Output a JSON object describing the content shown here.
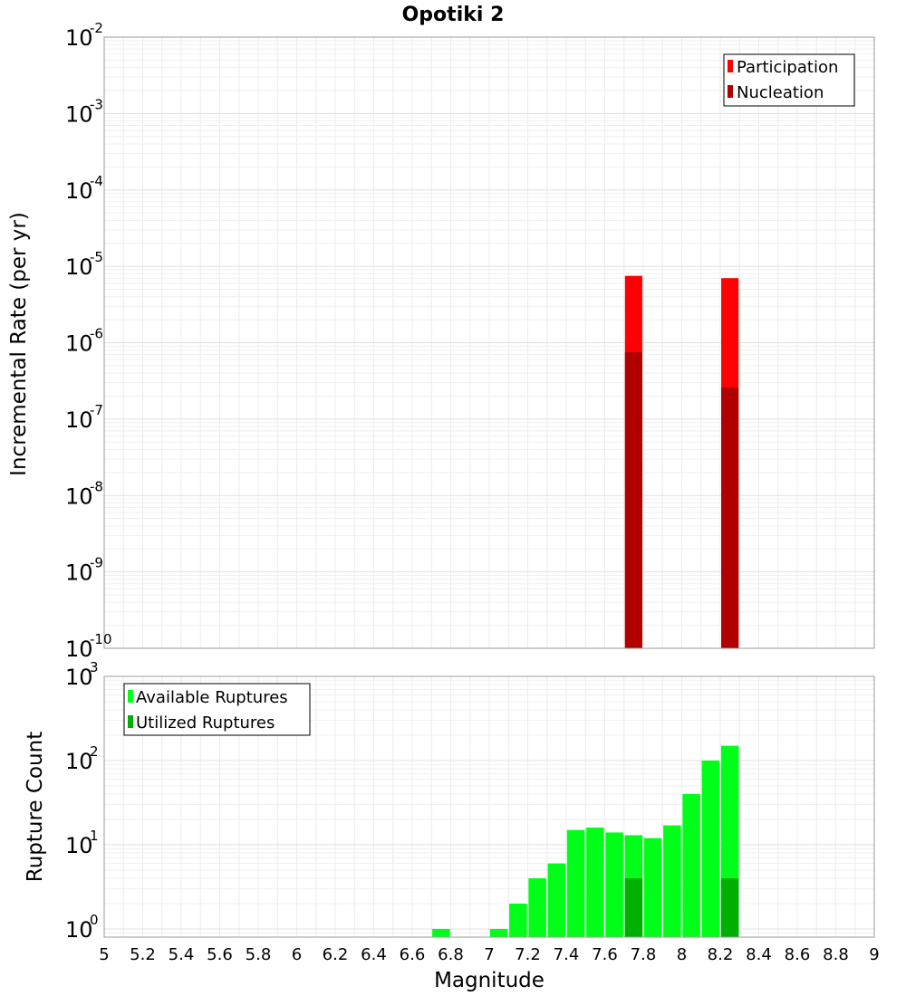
{
  "title": "Opotiki 2",
  "colors": {
    "participation": "#ff0000",
    "nucleation": "#b00000",
    "available": "#00ff18",
    "utilized": "#00b000"
  },
  "chart_data": [
    {
      "type": "bar",
      "title": "Opotiki 2",
      "xlabel": "Magnitude",
      "ylabel": "Incremental Rate (per yr)",
      "yscale": "log",
      "ylim": [
        1e-10,
        0.01
      ],
      "xlim": [
        5,
        9
      ],
      "grid": true,
      "legend_position": "top-right",
      "y_tick_labels": [
        {
          "base": "10",
          "exp": "-10"
        },
        {
          "base": "10",
          "exp": "-9"
        },
        {
          "base": "10",
          "exp": "-8"
        },
        {
          "base": "10",
          "exp": "-7"
        },
        {
          "base": "10",
          "exp": "-6"
        },
        {
          "base": "10",
          "exp": "-5"
        },
        {
          "base": "10",
          "exp": "-4"
        },
        {
          "base": "10",
          "exp": "-3"
        },
        {
          "base": "10",
          "exp": "-2"
        }
      ],
      "series": [
        {
          "name": "Participation",
          "color": "#ff0000",
          "x": [
            7.75,
            8.25
          ],
          "values": [
            7.5e-06,
            7e-06
          ]
        },
        {
          "name": "Nucleation",
          "color": "#b00000",
          "x": [
            7.75,
            8.25
          ],
          "values": [
            7.5e-07,
            2.6e-07
          ]
        }
      ]
    },
    {
      "type": "bar",
      "xlabel": "Magnitude",
      "ylabel": "Rupture Count",
      "yscale": "log",
      "ylim": [
        0.8,
        1000
      ],
      "xlim": [
        5,
        9
      ],
      "grid": true,
      "legend_position": "top-left",
      "x_tick_labels": [
        "5",
        "5.2",
        "5.4",
        "5.6",
        "5.8",
        "6",
        "6.2",
        "6.4",
        "6.6",
        "6.8",
        "7",
        "7.2",
        "7.4",
        "7.6",
        "7.8",
        "8",
        "8.2",
        "8.4",
        "8.6",
        "8.8",
        "9"
      ],
      "y_tick_labels": [
        {
          "base": "10",
          "exp": "0"
        },
        {
          "base": "10",
          "exp": "1"
        },
        {
          "base": "10",
          "exp": "2"
        },
        {
          "base": "10",
          "exp": "3"
        }
      ],
      "series": [
        {
          "name": "Available Ruptures",
          "color": "#00ff18",
          "x": [
            6.75,
            7.05,
            7.15,
            7.25,
            7.35,
            7.45,
            7.55,
            7.65,
            7.75,
            7.85,
            7.95,
            8.05,
            8.15,
            8.25
          ],
          "values": [
            1,
            1,
            2,
            4,
            6,
            15,
            16,
            14,
            13,
            12,
            17,
            40,
            100,
            150
          ]
        },
        {
          "name": "Utilized Ruptures",
          "color": "#00b000",
          "x": [
            7.75,
            8.25
          ],
          "values": [
            4,
            4
          ]
        }
      ]
    }
  ]
}
